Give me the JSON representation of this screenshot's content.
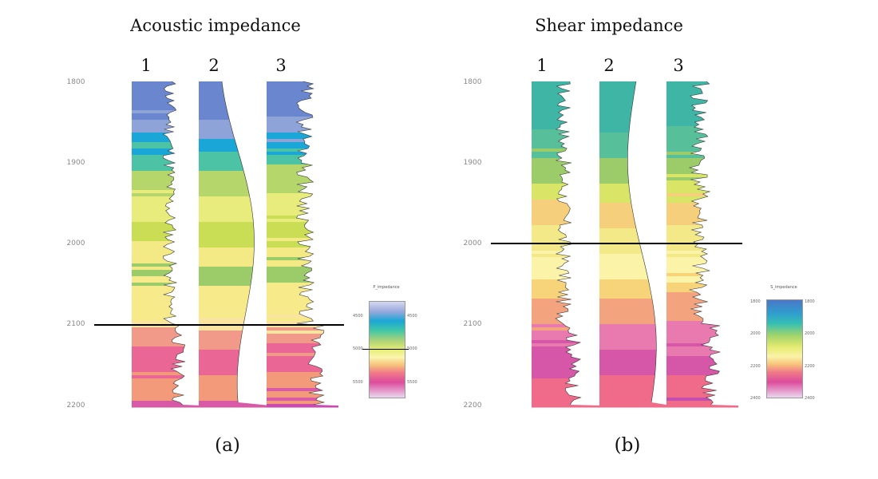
{
  "panel_a": {
    "title": "Acoustic impedance",
    "caption": "(a)",
    "track_numbers": [
      "1",
      "2",
      "3"
    ],
    "depth_labels": [
      "1800",
      "1900",
      "2000",
      "2100",
      "2200"
    ],
    "marker_depth": 2100,
    "legend": {
      "header": "P_impedance",
      "ticks_left": [
        "4500",
        "5000",
        "5500"
      ],
      "ticks_right": [
        "4500",
        "5000",
        "5500"
      ]
    }
  },
  "panel_b": {
    "title": "Shear impedance",
    "caption": "(b)",
    "track_numbers": [
      "1",
      "2",
      "3"
    ],
    "depth_labels": [
      "1800",
      "1900",
      "2000",
      "2100",
      "2200"
    ],
    "marker_depth": 2000,
    "legend": {
      "header": "S_impedance",
      "ticks_left": [
        "1800",
        "2000",
        "2200",
        "2400"
      ],
      "ticks_right": [
        "1800",
        "2000",
        "2200",
        "2400"
      ]
    }
  },
  "colors": {
    "colormap": [
      "#5b73c7",
      "#8ea4d8",
      "#1aa6d6",
      "#3fbfa9",
      "#9ccc6a",
      "#c2d84a",
      "#f1ec7a",
      "#fbf3a8",
      "#f8c27a",
      "#f28b8b",
      "#e8508c",
      "#c24aa8",
      "#e9d4ef"
    ]
  }
}
